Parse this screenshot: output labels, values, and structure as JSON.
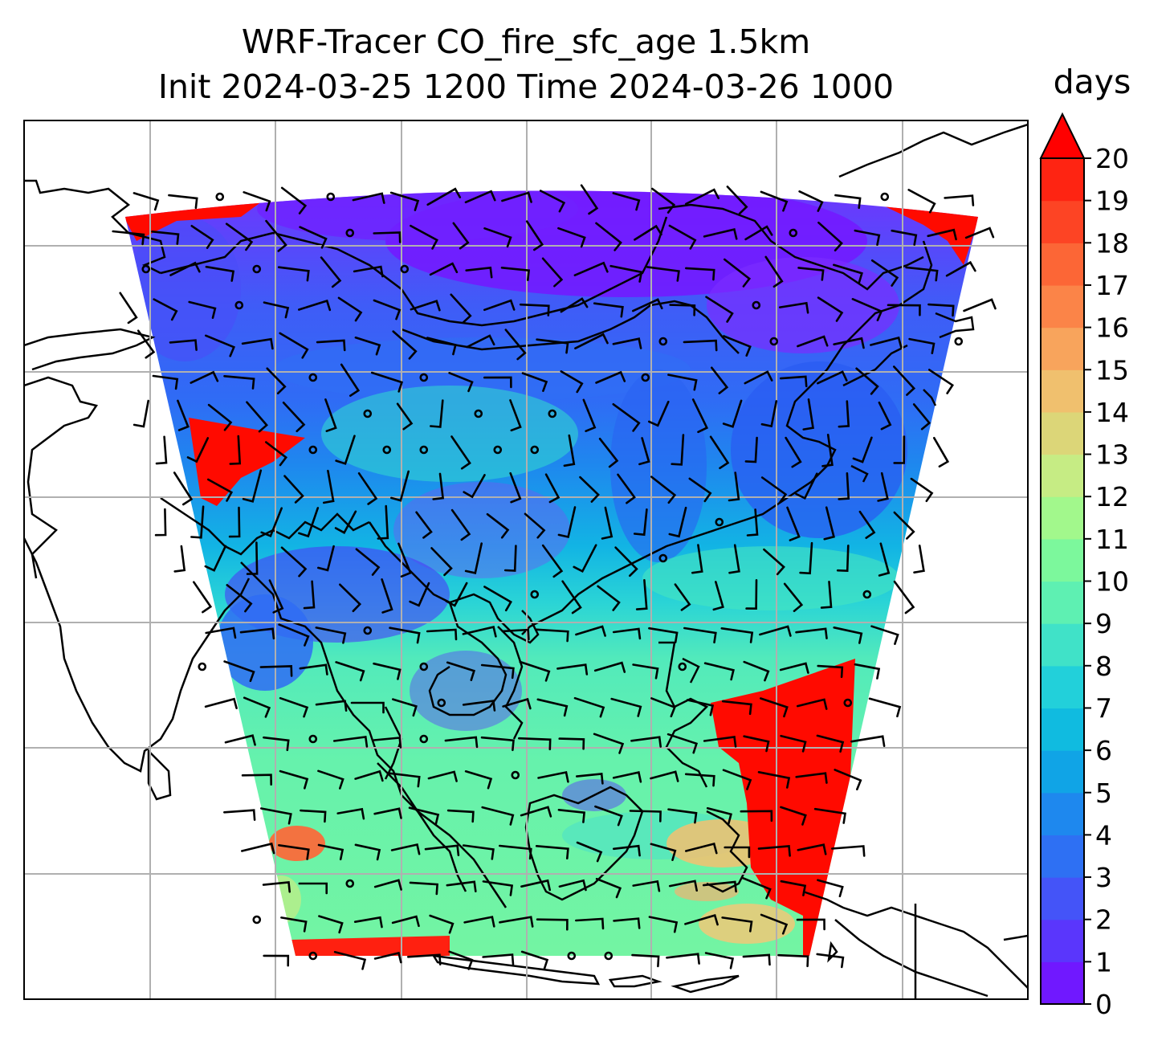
{
  "title": {
    "line1": "WRF-Tracer CO_fire_sfc_age 1.5km",
    "line2": "Init 2024-03-25 1200 Time 2024-03-26 1000"
  },
  "colorbar": {
    "units": "days",
    "ticks": [
      "0",
      "1",
      "2",
      "3",
      "4",
      "5",
      "6",
      "7",
      "8",
      "9",
      "10",
      "11",
      "12",
      "13",
      "14",
      "15",
      "16",
      "17",
      "18",
      "19",
      "20"
    ],
    "extend": "max",
    "colors": [
      "#7018ff",
      "#5a36fc",
      "#4454f8",
      "#2e70f3",
      "#1e88ee",
      "#10a4e6",
      "#10bbe0",
      "#22d0da",
      "#40e2c8",
      "#5ef0b2",
      "#7cf89c",
      "#a2f88c",
      "#c6ec84",
      "#dcd678",
      "#f0c06e",
      "#f8a45c",
      "#fb8448",
      "#fc6636",
      "#fd4424",
      "#fe2412",
      "#ff0000"
    ]
  },
  "map": {
    "field_colors": {
      "north": "#7a2cff",
      "midnorth": "#2f6cf5",
      "central": "#12b4e4",
      "south": "#63f0ae",
      "old_air": "#ff0a00"
    },
    "gridline_color": "#b0b0b0"
  }
}
